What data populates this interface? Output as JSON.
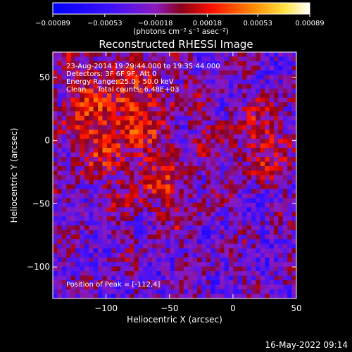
{
  "chart_data": {
    "type": "heatmap",
    "title": "Reconstructed RHESSI Image",
    "xlabel": "Heliocentric X (arcsec)",
    "ylabel": "Heliocentric Y (arcsec)",
    "xlim": [
      -142,
      50
    ],
    "ylim": [
      -125,
      70
    ],
    "x_ticks": [
      -100,
      -50,
      0,
      50
    ],
    "y_ticks": [
      -100,
      -50,
      0,
      50
    ],
    "x_tick_labels": [
      "−100",
      "−50",
      "0",
      "50"
    ],
    "y_tick_labels": [
      "−100",
      "−50",
      "0",
      "50"
    ],
    "colorbar": {
      "ticks": [
        -0.00089,
        -0.00053,
        -0.00018,
        0.00018,
        0.00053,
        0.00089
      ],
      "tick_labels": [
        "−0.00089",
        "−0.00053",
        "−0.00018",
        "0.00018",
        "0.00053",
        "0.00089"
      ],
      "unit_label": "(photons cm⁻² s⁻¹ asec⁻²)",
      "range": [
        -0.00089,
        0.00089
      ]
    },
    "annotations": [
      "23-Aug-2014 19:29:44.000 to 19:35:44.000",
      "Detectors: 3F 6F 9F, Att 0",
      "Energy Range: 25.0 - 50.0 keV",
      "Clean     Total counts: 6.48E+03"
    ],
    "peak_label": "Position of Peak = [-112,4]",
    "peak_position": [
      -112,
      4
    ],
    "grid": false
  },
  "footer": {
    "timestamp": "16-May-2022 09:14"
  }
}
